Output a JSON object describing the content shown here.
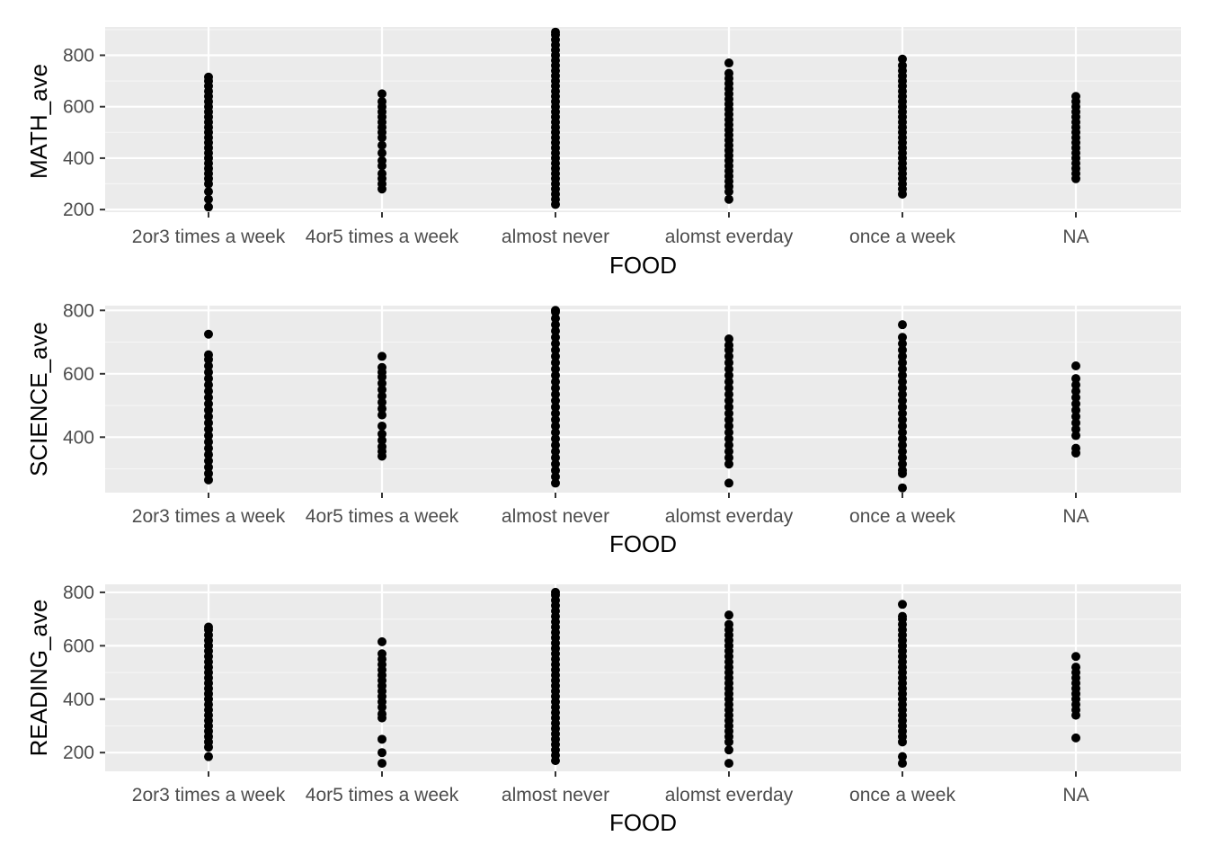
{
  "chart_data": [
    {
      "type": "scatter",
      "xlabel": "FOOD",
      "ylabel": "MATH_ave",
      "categories": [
        "2or3 times a week",
        "4or5 times a week",
        "almost never",
        "alomst everday",
        "once a week",
        "NA"
      ],
      "yticks": [
        200,
        400,
        600,
        800
      ],
      "ylim": [
        190,
        910
      ],
      "grid": true,
      "series": [
        {
          "category": "2or3 times a week",
          "y": [
            210,
            240,
            270,
            300,
            320,
            340,
            360,
            380,
            400,
            420,
            440,
            460,
            480,
            500,
            520,
            540,
            560,
            580,
            600,
            620,
            640,
            660,
            680,
            700,
            715
          ]
        },
        {
          "category": "4or5 times a week",
          "y": [
            280,
            300,
            320,
            340,
            370,
            390,
            420,
            450,
            480,
            500,
            520,
            540,
            560,
            580,
            600,
            620,
            650
          ]
        },
        {
          "category": "almost never",
          "y": [
            220,
            240,
            260,
            280,
            300,
            320,
            340,
            360,
            380,
            400,
            420,
            440,
            460,
            480,
            500,
            520,
            540,
            560,
            580,
            600,
            620,
            640,
            660,
            680,
            700,
            720,
            740,
            760,
            780,
            800,
            820,
            840,
            860,
            880,
            890
          ]
        },
        {
          "category": "alomst everday",
          "y": [
            240,
            270,
            290,
            310,
            330,
            350,
            370,
            390,
            410,
            430,
            450,
            470,
            490,
            510,
            530,
            550,
            570,
            590,
            610,
            630,
            650,
            670,
            690,
            710,
            730,
            770
          ]
        },
        {
          "category": "once a week",
          "y": [
            260,
            280,
            300,
            320,
            340,
            360,
            380,
            400,
            420,
            440,
            460,
            480,
            500,
            520,
            540,
            560,
            580,
            600,
            620,
            640,
            660,
            680,
            700,
            720,
            740,
            760,
            785
          ]
        },
        {
          "category": "NA",
          "y": [
            320,
            340,
            360,
            380,
            400,
            420,
            440,
            460,
            480,
            500,
            520,
            540,
            560,
            580,
            600,
            620,
            640
          ]
        }
      ]
    },
    {
      "type": "scatter",
      "xlabel": "FOOD",
      "ylabel": "SCIENCE_ave",
      "categories": [
        "2or3 times a week",
        "4or5 times a week",
        "almost never",
        "alomst everday",
        "once a week",
        "NA"
      ],
      "yticks": [
        400,
        600,
        800
      ],
      "ylim": [
        225,
        815
      ],
      "grid": true,
      "series": [
        {
          "category": "2or3 times a week",
          "y": [
            265,
            285,
            305,
            325,
            345,
            365,
            385,
            405,
            425,
            445,
            465,
            485,
            505,
            525,
            545,
            565,
            585,
            605,
            625,
            645,
            660,
            725
          ]
        },
        {
          "category": "4or5 times a week",
          "y": [
            340,
            355,
            370,
            390,
            410,
            435,
            470,
            490,
            510,
            530,
            550,
            570,
            590,
            605,
            620,
            655
          ]
        },
        {
          "category": "almost never",
          "y": [
            255,
            275,
            295,
            315,
            335,
            355,
            375,
            395,
            415,
            435,
            455,
            475,
            495,
            515,
            535,
            555,
            575,
            595,
            615,
            635,
            655,
            675,
            695,
            715,
            735,
            755,
            775,
            795,
            800
          ]
        },
        {
          "category": "alomst everday",
          "y": [
            255,
            315,
            335,
            355,
            375,
            395,
            415,
            435,
            455,
            475,
            495,
            515,
            535,
            555,
            575,
            595,
            615,
            635,
            655,
            675,
            690,
            710
          ]
        },
        {
          "category": "once a week",
          "y": [
            240,
            285,
            295,
            315,
            335,
            355,
            375,
            395,
            415,
            435,
            455,
            475,
            495,
            515,
            535,
            555,
            575,
            595,
            615,
            635,
            655,
            675,
            695,
            715,
            755
          ]
        },
        {
          "category": "NA",
          "y": [
            350,
            365,
            405,
            425,
            445,
            465,
            485,
            505,
            525,
            545,
            565,
            585,
            625
          ]
        }
      ]
    },
    {
      "type": "scatter",
      "xlabel": "FOOD",
      "ylabel": "READING_ave",
      "categories": [
        "2or3 times a week",
        "4or5 times a week",
        "almost never",
        "alomst everday",
        "once a week",
        "NA"
      ],
      "yticks": [
        200,
        400,
        600,
        800
      ],
      "ylim": [
        130,
        830
      ],
      "grid": true,
      "series": [
        {
          "category": "2or3 times a week",
          "y": [
            185,
            220,
            240,
            260,
            280,
            300,
            320,
            340,
            360,
            380,
            400,
            420,
            440,
            460,
            480,
            500,
            520,
            540,
            560,
            580,
            600,
            620,
            640,
            660,
            670
          ]
        },
        {
          "category": "4or5 times a week",
          "y": [
            160,
            200,
            250,
            330,
            345,
            370,
            390,
            410,
            430,
            450,
            470,
            490,
            510,
            530,
            550,
            570,
            615
          ]
        },
        {
          "category": "almost never",
          "y": [
            170,
            190,
            210,
            230,
            250,
            270,
            290,
            310,
            330,
            350,
            370,
            390,
            410,
            430,
            450,
            470,
            490,
            510,
            530,
            550,
            570,
            590,
            610,
            630,
            650,
            670,
            690,
            710,
            730,
            750,
            770,
            790,
            800
          ]
        },
        {
          "category": "alomst everday",
          "y": [
            160,
            210,
            240,
            260,
            280,
            300,
            320,
            340,
            360,
            380,
            400,
            420,
            440,
            460,
            480,
            500,
            520,
            540,
            560,
            580,
            600,
            620,
            640,
            660,
            680,
            715
          ]
        },
        {
          "category": "once a week",
          "y": [
            160,
            185,
            240,
            260,
            280,
            300,
            320,
            340,
            360,
            380,
            400,
            420,
            440,
            460,
            480,
            500,
            520,
            540,
            560,
            580,
            600,
            620,
            640,
            660,
            680,
            700,
            710,
            755
          ]
        },
        {
          "category": "NA",
          "y": [
            255,
            340,
            360,
            380,
            400,
            420,
            440,
            460,
            480,
            500,
            520,
            560
          ]
        }
      ]
    }
  ]
}
